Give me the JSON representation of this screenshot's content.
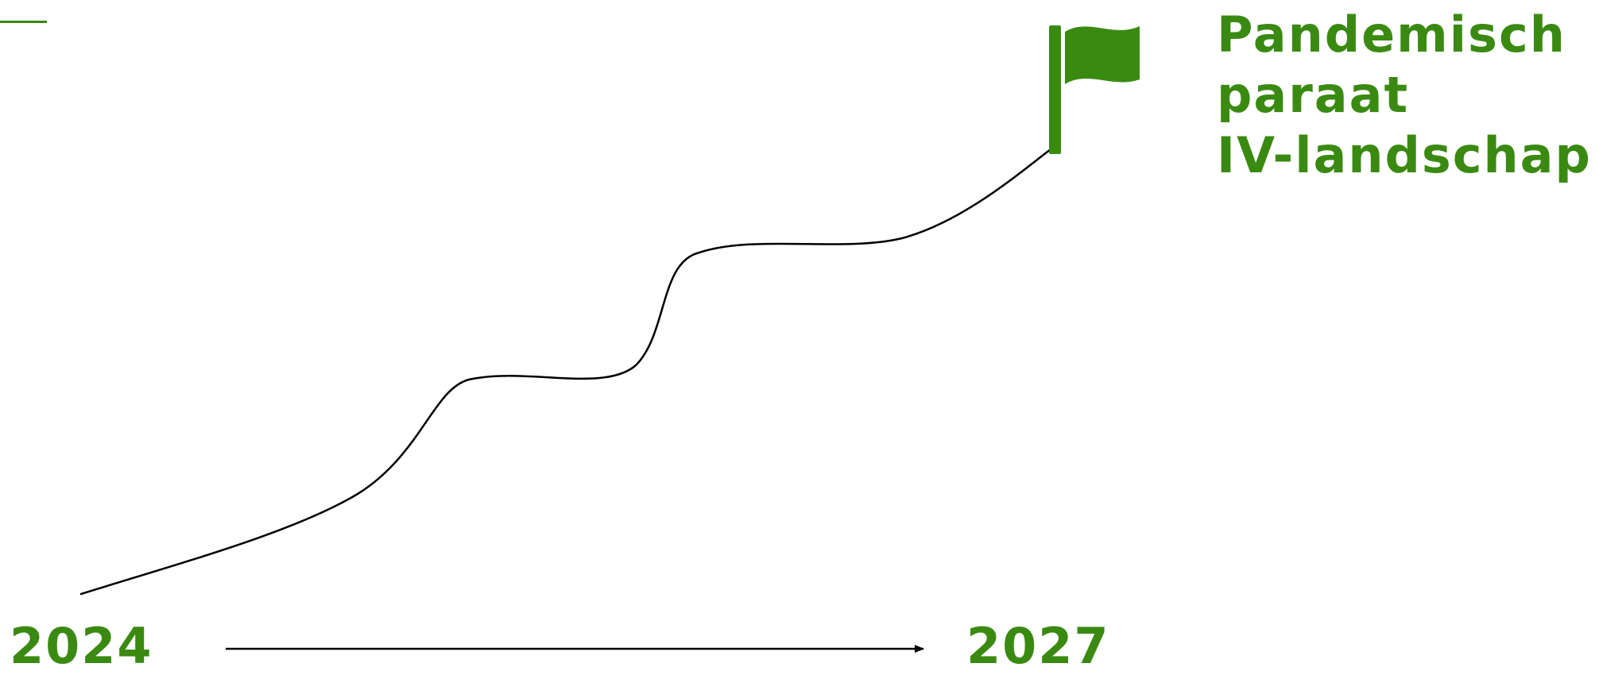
{
  "goal": {
    "title_lines": [
      "Pandemisch",
      "paraat",
      "IV-landschap"
    ]
  },
  "timeline": {
    "start_year": "2024",
    "end_year": "2027"
  },
  "icons": {
    "goal_marker": "flag-icon",
    "timeline_arrow": "arrow-right-icon"
  },
  "colors": {
    "accent": "#3a8a12",
    "line": "#000000",
    "background": "#ffffff"
  }
}
